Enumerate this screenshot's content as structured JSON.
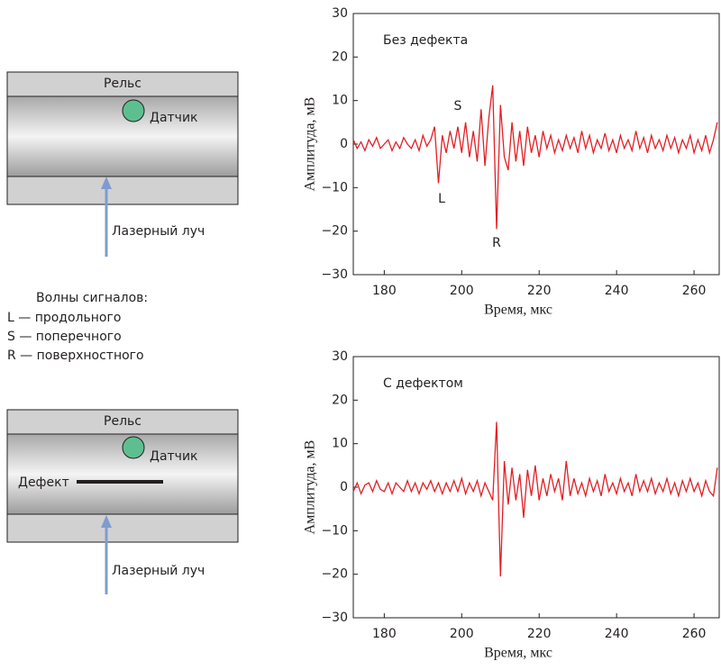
{
  "diagrams": {
    "rail": "Рельс",
    "sensor": "Датчик",
    "laser": "Лазерный луч",
    "waves_title": "Волны сигналов:",
    "waves": [
      "L — продольного",
      "S — поперечного",
      "R — поверхностного"
    ],
    "rail2": "Рельс",
    "sensor2": "Датчик",
    "defect": "Дефект",
    "laser2": "Лазерный луч"
  },
  "chart_data": [
    {
      "type": "line",
      "title": "Без дефекта",
      "xlabel": "Время, мкс",
      "ylabel": "Амплитуда, мВ",
      "color": "#e31e24",
      "annotations": [
        "L",
        "S",
        "R"
      ],
      "xlim": [
        172,
        266.5
      ],
      "xticks": [
        180,
        200,
        220,
        240,
        260
      ],
      "ylim": [
        -30,
        30
      ],
      "yticks": [
        {
          "value": -30,
          "label": "−30"
        },
        {
          "value": -20,
          "label": "−20"
        },
        {
          "value": -10,
          "label": "−10"
        },
        0,
        10,
        20,
        30
      ],
      "x": [
        172,
        173,
        174,
        175,
        176,
        177,
        178,
        179,
        180,
        181,
        182,
        183,
        184,
        185,
        186,
        187,
        188,
        189,
        190,
        191,
        192,
        193,
        194,
        195,
        196,
        197,
        198,
        199,
        200,
        201,
        202,
        203,
        204,
        205,
        206,
        207,
        208,
        209,
        210,
        211,
        212,
        213,
        214,
        215,
        216,
        217,
        218,
        219,
        220,
        221,
        222,
        223,
        224,
        225,
        226,
        227,
        228,
        229,
        230,
        231,
        232,
        233,
        234,
        235,
        236,
        237,
        238,
        239,
        240,
        241,
        242,
        243,
        244,
        245,
        246,
        247,
        248,
        249,
        250,
        251,
        252,
        253,
        254,
        255,
        256,
        257,
        258,
        259,
        260,
        261,
        262,
        263,
        264,
        265,
        266
      ],
      "values": [
        1,
        -1,
        0.5,
        -1.5,
        1,
        -0.5,
        1.5,
        -1,
        0,
        1,
        -1.5,
        0.5,
        -1,
        1.5,
        0,
        -1,
        1,
        -1.5,
        2,
        -0.5,
        1,
        4,
        -9,
        2,
        -2,
        3,
        -1,
        4,
        -2,
        5,
        -3,
        3,
        -4,
        8,
        -5,
        6,
        13.5,
        -19.5,
        9,
        -3,
        -6,
        5,
        -4,
        3,
        -5,
        4,
        -2,
        2,
        -3,
        3,
        -1,
        2,
        -2,
        1,
        -1.5,
        2,
        -1,
        1.5,
        -2,
        3,
        -1,
        2,
        -2,
        1,
        -1,
        2.5,
        -1.5,
        1,
        -2,
        2,
        -1,
        1,
        -1.5,
        3,
        -1,
        1.5,
        -2,
        2,
        -1,
        1,
        -1.5,
        2,
        -1,
        1.5,
        -2,
        1,
        -1,
        2,
        -2,
        1,
        -1.5,
        2,
        -2,
        1,
        5
      ]
    },
    {
      "type": "line",
      "title": "С дефектом",
      "xlabel": "Время, мкс",
      "ylabel": "Амплитуда, мВ",
      "color": "#e31e24",
      "xlim": [
        172,
        266.5
      ],
      "xticks": [
        180,
        200,
        220,
        240,
        260
      ],
      "ylim": [
        -30,
        30
      ],
      "yticks": [
        {
          "value": -30,
          "label": "−30"
        },
        {
          "value": -20,
          "label": "−20"
        },
        {
          "value": -10,
          "label": "−10"
        },
        0,
        10,
        20,
        30
      ],
      "x": [
        172,
        173,
        174,
        175,
        176,
        177,
        178,
        179,
        180,
        181,
        182,
        183,
        184,
        185,
        186,
        187,
        188,
        189,
        190,
        191,
        192,
        193,
        194,
        195,
        196,
        197,
        198,
        199,
        200,
        201,
        202,
        203,
        204,
        205,
        206,
        207,
        208,
        209,
        210,
        211,
        212,
        213,
        214,
        215,
        216,
        217,
        218,
        219,
        220,
        221,
        222,
        223,
        224,
        225,
        226,
        227,
        228,
        229,
        230,
        231,
        232,
        233,
        234,
        235,
        236,
        237,
        238,
        239,
        240,
        241,
        242,
        243,
        244,
        245,
        246,
        247,
        248,
        249,
        250,
        251,
        252,
        253,
        254,
        255,
        256,
        257,
        258,
        259,
        260,
        261,
        262,
        263,
        264,
        265,
        266
      ],
      "values": [
        -1,
        1,
        -1.5,
        0.5,
        1,
        -1,
        1.5,
        -0.5,
        -1,
        1,
        -1.5,
        1,
        0,
        -1,
        1.5,
        -1,
        1,
        -1.5,
        1,
        -0.5,
        1.5,
        -1,
        1,
        -1.5,
        1,
        -1,
        1.5,
        -1,
        2,
        -1.5,
        1,
        -1,
        1.5,
        -2,
        1,
        -1,
        -3,
        15,
        -20.5,
        6,
        -4,
        4.5,
        -3,
        3,
        -7,
        4,
        -2,
        5,
        -3,
        2,
        -2,
        3,
        -1,
        2,
        -3,
        6,
        -2,
        2,
        -1.5,
        1,
        -2,
        2,
        -1,
        1.5,
        -2,
        3,
        -1,
        1,
        -1.5,
        2,
        -1,
        1,
        -2,
        3,
        -1,
        1.5,
        -1,
        2,
        -1.5,
        1,
        -1,
        2,
        -1.5,
        1,
        -2,
        1.5,
        -1,
        2,
        -1,
        1,
        -2,
        1.5,
        -1,
        -2,
        4.5
      ]
    }
  ]
}
